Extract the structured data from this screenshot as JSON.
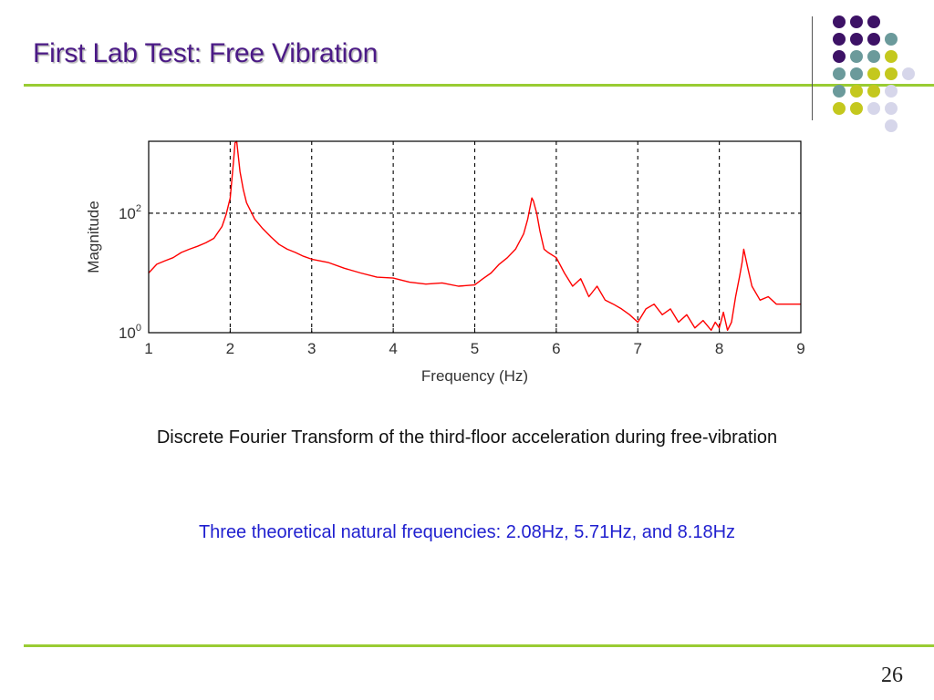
{
  "slide": {
    "title": "First Lab Test: Free Vibration",
    "caption": "Discrete Fourier Transform of the third-floor acceleration during free-vibration",
    "frequencies_note": "Three theoretical natural frequencies: 2.08Hz, 5.71Hz, and 8.18Hz",
    "page_number": "26"
  },
  "colors": {
    "title": "#4b1a86",
    "rule": "#99cc33",
    "note": "#1f1fcf",
    "plot_line": "#ff0000",
    "purple": "#3d1266",
    "teal": "#6b9a9b",
    "lime": "#c4c81e",
    "lavender": "#d6d6ea"
  },
  "decor": {
    "dot_colors": [
      [
        "purple",
        "purple",
        "purple"
      ],
      [
        "purple",
        "purple",
        "purple",
        "teal"
      ],
      [
        "purple",
        "teal",
        "teal",
        "lime"
      ],
      [
        "teal",
        "teal",
        "lime",
        "lime",
        "lavender"
      ],
      [
        "teal",
        "lime",
        "lime",
        "lavender"
      ],
      [
        "lime",
        "lime",
        "lavender",
        "lavender"
      ],
      [
        "lavender"
      ]
    ]
  },
  "chart_data": {
    "type": "line",
    "xlabel": "Frequency (Hz)",
    "ylabel": "Magnitude",
    "x_ticks": [
      1,
      2,
      3,
      4,
      5,
      6,
      7,
      8,
      9
    ],
    "y_scale": "log",
    "y_tick_labels": [
      {
        "value": 1,
        "base": "10",
        "exp": "0"
      },
      {
        "value": 100,
        "base": "10",
        "exp": "2"
      }
    ],
    "xlim": [
      1,
      9
    ],
    "ylim": [
      1,
      1600
    ],
    "grid": true,
    "series": [
      {
        "color": "#ff0000",
        "x": [
          1.0,
          1.1,
          1.2,
          1.3,
          1.4,
          1.5,
          1.6,
          1.7,
          1.8,
          1.9,
          1.95,
          2.0,
          2.04,
          2.06,
          2.08,
          2.1,
          2.12,
          2.16,
          2.2,
          2.3,
          2.4,
          2.5,
          2.6,
          2.7,
          2.8,
          2.9,
          3.0,
          3.2,
          3.4,
          3.6,
          3.8,
          4.0,
          4.2,
          4.4,
          4.6,
          4.8,
          5.0,
          5.1,
          5.2,
          5.3,
          5.4,
          5.5,
          5.6,
          5.65,
          5.7,
          5.72,
          5.76,
          5.8,
          5.85,
          5.9,
          6.0,
          6.1,
          6.2,
          6.3,
          6.4,
          6.5,
          6.6,
          6.7,
          6.8,
          6.9,
          7.0,
          7.1,
          7.2,
          7.3,
          7.4,
          7.5,
          7.6,
          7.7,
          7.8,
          7.9,
          7.95,
          8.0,
          8.05,
          8.1,
          8.15,
          8.2,
          8.25,
          8.28,
          8.3,
          8.35,
          8.4,
          8.5,
          8.6,
          8.7,
          8.8,
          8.9,
          9.0
        ],
        "y": [
          10,
          14,
          16,
          18,
          22,
          25,
          28,
          32,
          38,
          60,
          95,
          180,
          700,
          1500,
          1600,
          900,
          500,
          250,
          150,
          80,
          55,
          40,
          30,
          25,
          22,
          19,
          17,
          15,
          12,
          10,
          8.5,
          8.2,
          7,
          6.5,
          6.8,
          6,
          6.3,
          8,
          10,
          14,
          18,
          25,
          45,
          80,
          180,
          160,
          100,
          50,
          25,
          22,
          18,
          10,
          6,
          8,
          4,
          6,
          3.5,
          3,
          2.5,
          2,
          1.5,
          2.5,
          3,
          2,
          2.5,
          1.5,
          2,
          1.2,
          1.6,
          1.1,
          1.5,
          1.2,
          2.2,
          1.1,
          1.5,
          4,
          9,
          15,
          25,
          12,
          6,
          3.5,
          4,
          3,
          3,
          3,
          3
        ]
      }
    ]
  }
}
